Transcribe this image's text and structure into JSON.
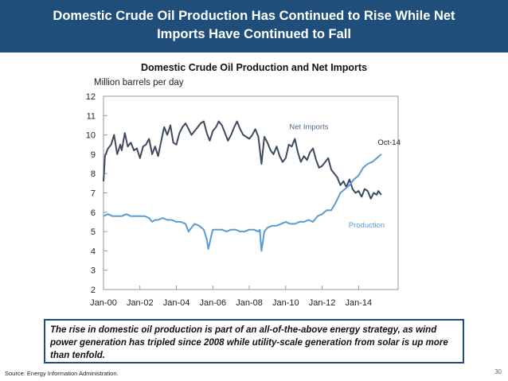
{
  "slide": {
    "title_line1": "Domestic Crude Oil Production Has Continued to Rise While Net",
    "title_line2": "Imports Have Continued to Fall",
    "callout_text": "The rise in domestic oil production is part of an all-of-the-above energy strategy, as wind power generation has tripled since 2008 while utility-scale generation from solar is up more than tenfold.",
    "source": "Source: Energy Information Administration.",
    "page_number": "30",
    "accent_color": "#1f4e7a"
  },
  "chart_data": {
    "type": "line",
    "title": "Domestic Crude Oil Production and Net Imports",
    "ylabel": "Million barrels per day",
    "xlabel": "",
    "ylim": [
      2,
      12
    ],
    "yticks": [
      "2",
      "3",
      "4",
      "5",
      "6",
      "7",
      "8",
      "9",
      "10",
      "11",
      "12"
    ],
    "xlim": [
      2000.0,
      2016.17
    ],
    "xticks": [
      {
        "x": 2000,
        "label": "Jan-00"
      },
      {
        "x": 2002,
        "label": "Jan-02"
      },
      {
        "x": 2004,
        "label": "Jan-04"
      },
      {
        "x": 2006,
        "label": "Jan-06"
      },
      {
        "x": 2008,
        "label": "Jan-08"
      },
      {
        "x": 2010,
        "label": "Jan-10"
      },
      {
        "x": 2012,
        "label": "Jan-12"
      },
      {
        "x": 2014,
        "label": "Jan-14"
      }
    ],
    "grid": false,
    "series": [
      {
        "name": "Net Imports",
        "color": "#3b4a5e",
        "points": [
          [
            2000.0,
            7.6
          ],
          [
            2000.08,
            8.9
          ],
          [
            2000.25,
            9.3
          ],
          [
            2000.42,
            9.5
          ],
          [
            2000.58,
            10.0
          ],
          [
            2000.75,
            9.0
          ],
          [
            2000.92,
            9.5
          ],
          [
            2001.0,
            9.2
          ],
          [
            2001.17,
            10.1
          ],
          [
            2001.33,
            9.4
          ],
          [
            2001.5,
            9.6
          ],
          [
            2001.67,
            9.2
          ],
          [
            2001.83,
            9.3
          ],
          [
            2002.0,
            8.8
          ],
          [
            2002.17,
            9.4
          ],
          [
            2002.33,
            9.5
          ],
          [
            2002.5,
            9.8
          ],
          [
            2002.67,
            9.0
          ],
          [
            2002.83,
            9.4
          ],
          [
            2003.0,
            8.9
          ],
          [
            2003.17,
            9.7
          ],
          [
            2003.33,
            10.4
          ],
          [
            2003.5,
            10.0
          ],
          [
            2003.67,
            10.5
          ],
          [
            2003.83,
            9.6
          ],
          [
            2004.0,
            9.5
          ],
          [
            2004.17,
            10.1
          ],
          [
            2004.33,
            10.4
          ],
          [
            2004.5,
            10.6
          ],
          [
            2004.67,
            10.3
          ],
          [
            2004.83,
            10.0
          ],
          [
            2005.0,
            10.2
          ],
          [
            2005.17,
            10.4
          ],
          [
            2005.33,
            10.6
          ],
          [
            2005.5,
            10.7
          ],
          [
            2005.67,
            10.1
          ],
          [
            2005.83,
            9.7
          ],
          [
            2006.0,
            10.2
          ],
          [
            2006.17,
            10.4
          ],
          [
            2006.33,
            10.7
          ],
          [
            2006.5,
            10.5
          ],
          [
            2006.67,
            10.1
          ],
          [
            2006.83,
            9.7
          ],
          [
            2007.0,
            10.0
          ],
          [
            2007.17,
            10.4
          ],
          [
            2007.33,
            10.7
          ],
          [
            2007.5,
            10.3
          ],
          [
            2007.67,
            10.0
          ],
          [
            2007.83,
            9.9
          ],
          [
            2008.0,
            9.8
          ],
          [
            2008.17,
            10.0
          ],
          [
            2008.33,
            10.3
          ],
          [
            2008.5,
            9.9
          ],
          [
            2008.67,
            8.5
          ],
          [
            2008.83,
            9.9
          ],
          [
            2009.0,
            9.6
          ],
          [
            2009.17,
            9.2
          ],
          [
            2009.33,
            9.0
          ],
          [
            2009.5,
            9.4
          ],
          [
            2009.67,
            8.9
          ],
          [
            2009.83,
            8.6
          ],
          [
            2010.0,
            8.8
          ],
          [
            2010.17,
            9.5
          ],
          [
            2010.33,
            9.4
          ],
          [
            2010.5,
            9.8
          ],
          [
            2010.67,
            9.1
          ],
          [
            2010.83,
            8.6
          ],
          [
            2011.0,
            8.9
          ],
          [
            2011.17,
            8.7
          ],
          [
            2011.33,
            9.1
          ],
          [
            2011.5,
            9.3
          ],
          [
            2011.67,
            8.7
          ],
          [
            2011.83,
            8.3
          ],
          [
            2012.0,
            8.4
          ],
          [
            2012.17,
            8.6
          ],
          [
            2012.33,
            8.8
          ],
          [
            2012.5,
            8.2
          ],
          [
            2012.67,
            8.0
          ],
          [
            2012.83,
            7.8
          ],
          [
            2013.0,
            7.4
          ],
          [
            2013.17,
            7.6
          ],
          [
            2013.33,
            7.3
          ],
          [
            2013.5,
            7.7
          ],
          [
            2013.67,
            7.2
          ],
          [
            2013.83,
            7.0
          ],
          [
            2014.0,
            7.1
          ],
          [
            2014.17,
            6.8
          ],
          [
            2014.33,
            7.2
          ],
          [
            2014.5,
            7.1
          ],
          [
            2014.67,
            6.7
          ],
          [
            2014.83,
            7.0
          ],
          [
            2015.0,
            6.9
          ],
          [
            2015.08,
            7.1
          ],
          [
            2015.25,
            6.9
          ]
        ]
      },
      {
        "name": "Production",
        "color": "#5b9bd5",
        "points": [
          [
            2000.0,
            5.8
          ],
          [
            2000.25,
            5.9
          ],
          [
            2000.5,
            5.8
          ],
          [
            2000.75,
            5.8
          ],
          [
            2001.0,
            5.8
          ],
          [
            2001.25,
            5.9
          ],
          [
            2001.5,
            5.8
          ],
          [
            2001.75,
            5.8
          ],
          [
            2002.0,
            5.8
          ],
          [
            2002.25,
            5.8
          ],
          [
            2002.5,
            5.7
          ],
          [
            2002.67,
            5.5
          ],
          [
            2002.83,
            5.6
          ],
          [
            2003.0,
            5.6
          ],
          [
            2003.25,
            5.7
          ],
          [
            2003.5,
            5.6
          ],
          [
            2003.75,
            5.6
          ],
          [
            2004.0,
            5.5
          ],
          [
            2004.25,
            5.5
          ],
          [
            2004.5,
            5.4
          ],
          [
            2004.67,
            5.0
          ],
          [
            2004.83,
            5.2
          ],
          [
            2005.0,
            5.4
          ],
          [
            2005.25,
            5.3
          ],
          [
            2005.5,
            5.1
          ],
          [
            2005.67,
            4.6
          ],
          [
            2005.75,
            4.1
          ],
          [
            2005.92,
            4.8
          ],
          [
            2006.0,
            5.1
          ],
          [
            2006.25,
            5.1
          ],
          [
            2006.5,
            5.1
          ],
          [
            2006.75,
            5.0
          ],
          [
            2007.0,
            5.1
          ],
          [
            2007.25,
            5.1
          ],
          [
            2007.5,
            5.0
          ],
          [
            2007.75,
            5.0
          ],
          [
            2008.0,
            5.1
          ],
          [
            2008.25,
            5.1
          ],
          [
            2008.5,
            5.0
          ],
          [
            2008.58,
            5.1
          ],
          [
            2008.67,
            4.0
          ],
          [
            2008.75,
            4.5
          ],
          [
            2008.83,
            5.0
          ],
          [
            2009.0,
            5.2
          ],
          [
            2009.25,
            5.3
          ],
          [
            2009.5,
            5.3
          ],
          [
            2009.75,
            5.4
          ],
          [
            2010.0,
            5.5
          ],
          [
            2010.25,
            5.4
          ],
          [
            2010.5,
            5.4
          ],
          [
            2010.75,
            5.5
          ],
          [
            2011.0,
            5.5
          ],
          [
            2011.25,
            5.6
          ],
          [
            2011.5,
            5.5
          ],
          [
            2011.75,
            5.8
          ],
          [
            2012.0,
            5.9
          ],
          [
            2012.25,
            6.1
          ],
          [
            2012.5,
            6.1
          ],
          [
            2012.75,
            6.5
          ],
          [
            2013.0,
            7.0
          ],
          [
            2013.25,
            7.2
          ],
          [
            2013.5,
            7.4
          ],
          [
            2013.75,
            7.7
          ],
          [
            2014.0,
            7.9
          ],
          [
            2014.25,
            8.3
          ],
          [
            2014.5,
            8.5
          ],
          [
            2014.75,
            8.6
          ],
          [
            2015.0,
            8.8
          ],
          [
            2015.25,
            9.0
          ]
        ]
      }
    ],
    "annotations": [
      {
        "text": "Net Imports",
        "x": 2010.2,
        "y": 10.3
      },
      {
        "text": "Oct-14",
        "x": 2015.05,
        "y": 9.5
      },
      {
        "text": "Production",
        "x": 2013.45,
        "y": 5.2
      }
    ]
  }
}
